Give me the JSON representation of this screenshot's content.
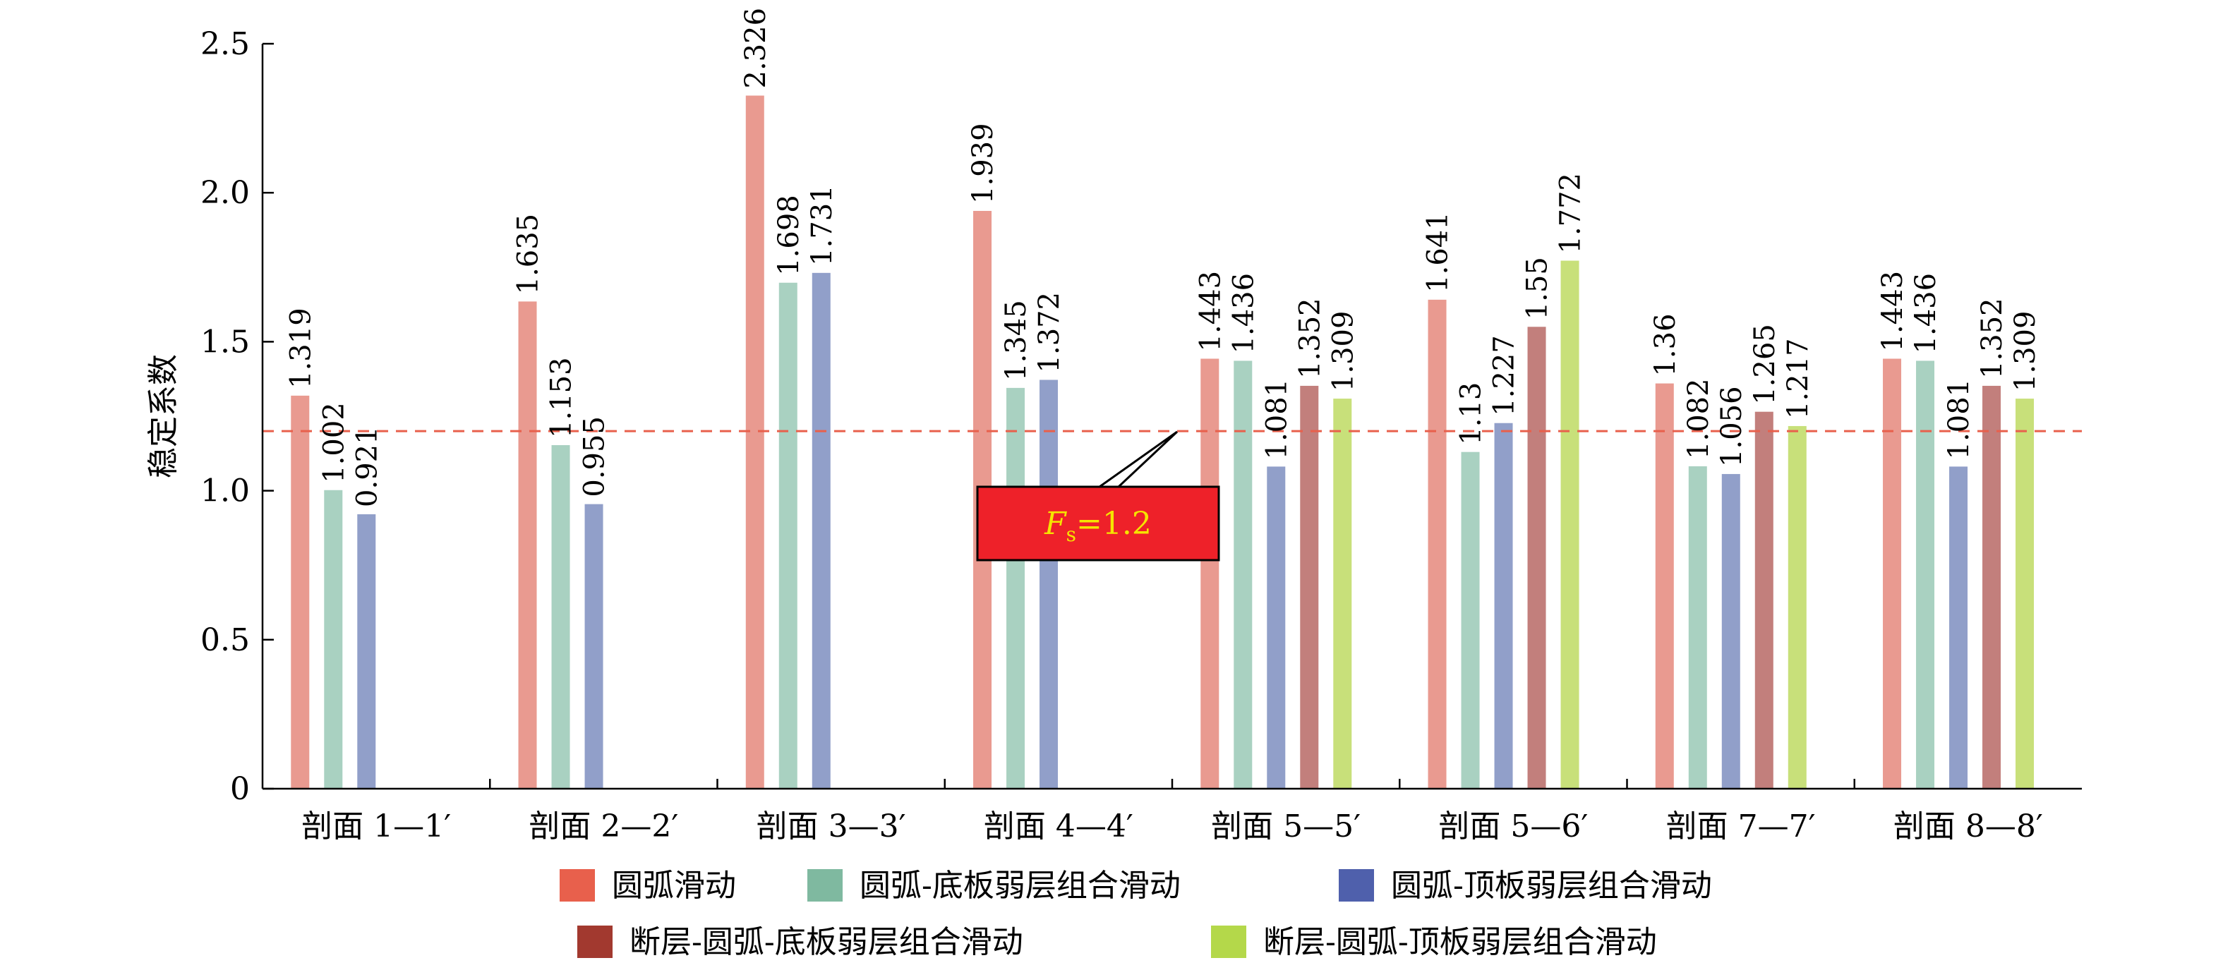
{
  "chart_data": {
    "type": "bar",
    "ylabel": "稳定系数",
    "ylim": [
      0,
      2.5
    ],
    "yticks": [
      "0",
      "0.5",
      "1.0",
      "1.5",
      "2.0",
      "2.5"
    ],
    "grid": false,
    "legend_position": "bottom",
    "categories": [
      "剖面 1—1′",
      "剖面 2—2′",
      "剖面 3—3′",
      "剖面 4—4′",
      "剖面 5—5′",
      "剖面 5—6′",
      "剖面 7—7′",
      "剖面 8—8′"
    ],
    "series": [
      {
        "name": "圆弧滑动",
        "legend_color": "#e8604c",
        "bar_color": "#e99a90",
        "values": [
          1.319,
          1.635,
          2.326,
          1.939,
          1.443,
          1.641,
          1.36,
          1.443
        ],
        "labels": [
          "1.319",
          "1.635",
          "2.326",
          "1.939",
          "1.443",
          "1.641",
          "1.36",
          "1.443"
        ]
      },
      {
        "name": "圆弧-底板弱层组合滑动",
        "legend_color": "#7fb9a0",
        "bar_color": "#a9d1c1",
        "values": [
          1.002,
          1.153,
          1.698,
          1.345,
          1.436,
          1.13,
          1.082,
          1.436
        ],
        "labels": [
          "1.002",
          "1.153",
          "1.698",
          "1.345",
          "1.436",
          "1.13",
          "1.082",
          "1.436"
        ]
      },
      {
        "name": "圆弧-顶板弱层组合滑动",
        "legend_color": "#4f60ac",
        "bar_color": "#919fc9",
        "values": [
          0.921,
          0.955,
          1.731,
          1.372,
          1.081,
          1.227,
          1.056,
          1.081
        ],
        "labels": [
          "0.921",
          "0.955",
          "1.731",
          "1.372",
          "1.081",
          "1.227",
          "1.056",
          "1.081"
        ]
      },
      {
        "name": "断层-圆弧-底板弱层组合滑动",
        "legend_color": "#a2392f",
        "bar_color": "#c27f7c",
        "values": [
          null,
          null,
          null,
          null,
          1.352,
          1.55,
          1.265,
          1.352
        ],
        "labels": [
          null,
          null,
          null,
          null,
          "1.352",
          "1.55",
          "1.265",
          "1.352"
        ]
      },
      {
        "name": "断层-圆弧-顶板弱层组合滑动",
        "legend_color": "#b4d84a",
        "bar_color": "#c8e07a",
        "values": [
          null,
          null,
          null,
          null,
          1.309,
          1.772,
          1.217,
          1.309
        ],
        "labels": [
          null,
          null,
          null,
          null,
          "1.309",
          "1.772",
          "1.217",
          "1.309"
        ]
      }
    ],
    "reference_line": {
      "value": 1.2,
      "color": "#e8604c",
      "style": "dashed"
    },
    "annotation": {
      "label_italic": "F",
      "label_sub": "s",
      "label_rest": "=1.2",
      "box_color": "#ee2129",
      "text_color": "#f5e400"
    }
  }
}
